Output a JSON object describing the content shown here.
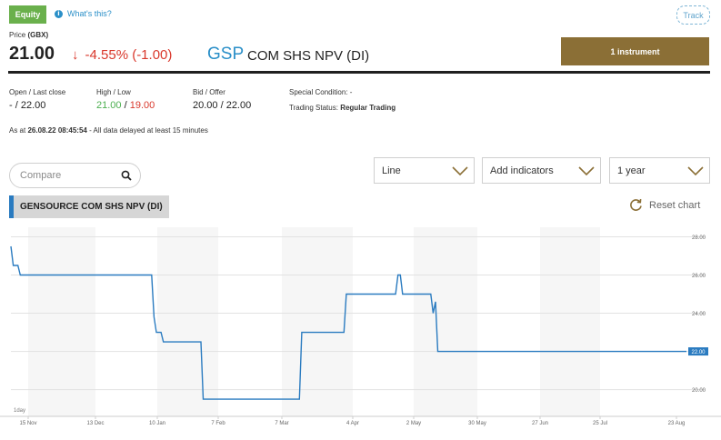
{
  "header": {
    "badge": "Equity",
    "whats_this": "What's this?",
    "track": "Track"
  },
  "quote": {
    "price_label_prefix": "Price",
    "price_label_unit": "(GBX)",
    "price": "21.00",
    "change_arrow": "↓",
    "change": "-4.55% (-1.00)",
    "ticker": "GSP",
    "name": "COM SHS NPV (DI)",
    "instrument_button": "1 instrument"
  },
  "stats": {
    "open_label": "Open / Last close",
    "open_value": "- / 22.00",
    "highlow_label": "High / Low",
    "high": "21.00",
    "separator": " / ",
    "low": "19.00",
    "bidoffer_label": "Bid / Offer",
    "bidoffer_value": "20.00 / 22.00",
    "special_condition_label": "Special Condition:",
    "special_condition_value": "-",
    "trading_status_label": "Trading Status:",
    "trading_status_value": "Regular Trading",
    "asat_prefix": "As at",
    "asat_time": "26.08.22 08:45:54",
    "asat_suffix": "- All data delayed at least 15 minutes"
  },
  "controls": {
    "compare_placeholder": "Compare",
    "chart_type": "Line",
    "indicators": "Add indicators",
    "period": "1 year",
    "series_label": "GENSOURCE COM SHS NPV (DI)",
    "reset": "Reset chart"
  },
  "colors": {
    "line": "#2a7bc0",
    "badge": "#6ab04c",
    "instrument_button": "#8b6f36",
    "negative": "#d9382c",
    "ticker": "#2a8fc8"
  },
  "chart_data": {
    "type": "line",
    "interval_label": "1day",
    "x_ticks": [
      "15 Nov",
      "13 Dec",
      "10 Jan",
      "7 Feb",
      "7 Mar",
      "4 Apr",
      "2 May",
      "30 May",
      "27 Jun",
      "25 Jul",
      "23 Aug"
    ],
    "y_ticks": [
      "28.00",
      "26.00",
      "24.00",
      "22.00",
      "20.00"
    ],
    "ylim": [
      18.6,
      28.5
    ],
    "last_value_label": "22.00",
    "series": [
      {
        "values": [
          [
            "2021-11-08",
            27.5
          ],
          [
            "2021-11-09",
            26.5
          ],
          [
            "2021-11-11",
            26.5
          ],
          [
            "2021-11-12",
            26.0
          ],
          [
            "2022-01-07",
            26.0
          ],
          [
            "2022-01-08",
            23.8
          ],
          [
            "2022-01-09",
            23.0
          ],
          [
            "2022-01-11",
            23.0
          ],
          [
            "2022-01-12",
            22.5
          ],
          [
            "2022-01-28",
            22.5
          ],
          [
            "2022-01-29",
            19.5
          ],
          [
            "2022-03-11",
            19.5
          ],
          [
            "2022-03-12",
            23.0
          ],
          [
            "2022-03-30",
            23.0
          ],
          [
            "2022-03-31",
            25.0
          ],
          [
            "2022-04-21",
            25.0
          ],
          [
            "2022-04-22",
            26.0
          ],
          [
            "2022-04-23",
            26.0
          ],
          [
            "2022-04-24",
            25.0
          ],
          [
            "2022-05-06",
            25.0
          ],
          [
            "2022-05-07",
            24.0
          ],
          [
            "2022-05-08",
            24.6
          ],
          [
            "2022-05-09",
            22.0
          ],
          [
            "2022-08-23",
            22.0
          ]
        ]
      }
    ]
  }
}
